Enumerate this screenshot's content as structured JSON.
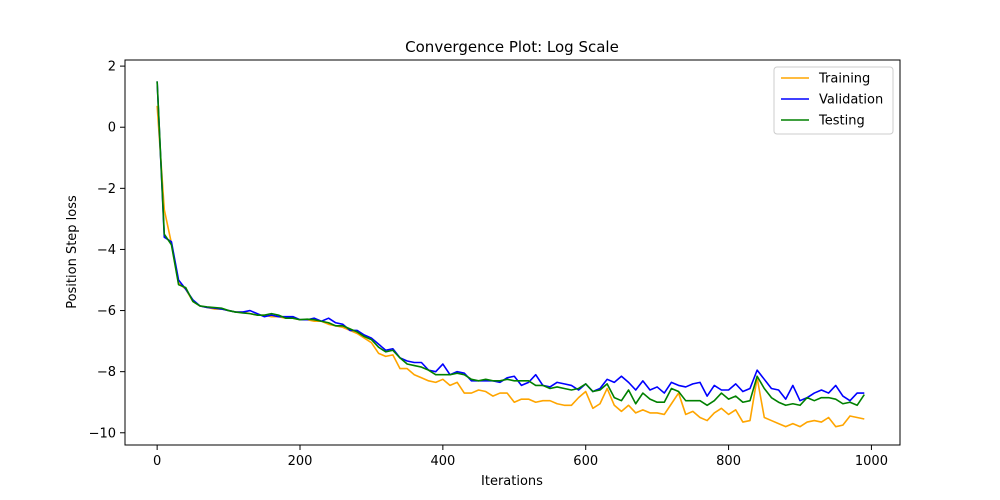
{
  "chart_data": {
    "type": "line",
    "title": "Convergence Plot: Log Scale",
    "xlabel": "Iterations",
    "ylabel": "Position Step loss",
    "xlim": [
      -45,
      1040
    ],
    "ylim": [
      -10.4,
      2.2
    ],
    "xticks": [
      0,
      200,
      400,
      600,
      800,
      1000
    ],
    "yticks": [
      2,
      0,
      -2,
      -4,
      -6,
      -8,
      -10
    ],
    "xtick_labels": [
      "0",
      "200",
      "400",
      "600",
      "800",
      "1000"
    ],
    "ytick_labels": [
      "2",
      "0",
      "−2",
      "−4",
      "−6",
      "−8",
      "−10"
    ],
    "grid": false,
    "legend_position": "top-right",
    "x": [
      0,
      10,
      20,
      30,
      40,
      50,
      60,
      70,
      80,
      90,
      100,
      110,
      120,
      130,
      140,
      150,
      160,
      170,
      180,
      190,
      200,
      210,
      220,
      230,
      240,
      250,
      260,
      270,
      280,
      290,
      300,
      310,
      320,
      330,
      340,
      350,
      360,
      370,
      380,
      390,
      400,
      410,
      420,
      430,
      440,
      450,
      460,
      470,
      480,
      490,
      500,
      510,
      520,
      530,
      540,
      550,
      560,
      570,
      580,
      590,
      600,
      610,
      620,
      630,
      640,
      650,
      660,
      670,
      680,
      690,
      700,
      710,
      720,
      730,
      740,
      750,
      760,
      770,
      780,
      790,
      800,
      810,
      820,
      830,
      840,
      850,
      860,
      870,
      880,
      890,
      900,
      910,
      920,
      930,
      940,
      950,
      960,
      970,
      980,
      990
    ],
    "series": [
      {
        "name": "Training",
        "color": "#ffa500",
        "values": [
          0.7,
          -2.7,
          -3.8,
          -5.1,
          -5.3,
          -5.7,
          -5.85,
          -5.9,
          -5.95,
          -5.95,
          -6.0,
          -6.05,
          -6.05,
          -6.1,
          -6.15,
          -6.15,
          -6.2,
          -6.2,
          -6.25,
          -6.25,
          -6.3,
          -6.3,
          -6.35,
          -6.35,
          -6.45,
          -6.5,
          -6.55,
          -6.65,
          -6.75,
          -6.9,
          -7.05,
          -7.4,
          -7.5,
          -7.45,
          -7.9,
          -7.9,
          -8.1,
          -8.2,
          -8.3,
          -8.35,
          -8.25,
          -8.45,
          -8.35,
          -8.7,
          -8.7,
          -8.6,
          -8.65,
          -8.8,
          -8.7,
          -8.7,
          -9.0,
          -8.9,
          -8.9,
          -9.0,
          -8.95,
          -8.95,
          -9.05,
          -9.1,
          -9.1,
          -8.85,
          -8.65,
          -9.2,
          -9.05,
          -8.55,
          -9.1,
          -9.3,
          -9.1,
          -9.35,
          -9.25,
          -9.35,
          -9.35,
          -9.4,
          -9.05,
          -8.7,
          -9.4,
          -9.3,
          -9.5,
          -9.6,
          -9.35,
          -9.2,
          -9.4,
          -9.25,
          -9.65,
          -9.6,
          -8.2,
          -9.5,
          -9.6,
          -9.7,
          -9.8,
          -9.7,
          -9.8,
          -9.65,
          -9.6,
          -9.65,
          -9.5,
          -9.8,
          -9.75,
          -9.45,
          -9.5,
          -9.55
        ]
      },
      {
        "name": "Validation",
        "color": "#0000ff",
        "values": [
          1.5,
          -3.6,
          -3.75,
          -5.0,
          -5.3,
          -5.65,
          -5.85,
          -5.9,
          -5.92,
          -5.95,
          -6.0,
          -6.05,
          -6.05,
          -6.0,
          -6.1,
          -6.2,
          -6.15,
          -6.2,
          -6.2,
          -6.2,
          -6.3,
          -6.3,
          -6.25,
          -6.35,
          -6.25,
          -6.4,
          -6.45,
          -6.65,
          -6.65,
          -6.8,
          -6.9,
          -7.1,
          -7.3,
          -7.25,
          -7.55,
          -7.65,
          -7.7,
          -7.7,
          -7.95,
          -8.0,
          -7.75,
          -8.1,
          -8.0,
          -8.05,
          -8.3,
          -8.3,
          -8.3,
          -8.3,
          -8.35,
          -8.2,
          -8.15,
          -8.45,
          -8.35,
          -8.1,
          -8.45,
          -8.5,
          -8.35,
          -8.4,
          -8.45,
          -8.6,
          -8.4,
          -8.65,
          -8.55,
          -8.25,
          -8.35,
          -8.15,
          -8.35,
          -8.6,
          -8.3,
          -8.6,
          -8.5,
          -8.7,
          -8.35,
          -8.45,
          -8.5,
          -8.4,
          -8.35,
          -8.8,
          -8.45,
          -8.6,
          -8.6,
          -8.4,
          -8.65,
          -8.55,
          -7.95,
          -8.25,
          -8.55,
          -8.6,
          -8.9,
          -8.45,
          -8.95,
          -8.85,
          -8.7,
          -8.6,
          -8.7,
          -8.45,
          -8.8,
          -8.95,
          -8.7,
          -8.7
        ]
      },
      {
        "name": "Testing",
        "color": "#008000",
        "values": [
          1.5,
          -3.5,
          -3.85,
          -5.15,
          -5.25,
          -5.7,
          -5.85,
          -5.88,
          -5.9,
          -5.92,
          -6.0,
          -6.05,
          -6.08,
          -6.1,
          -6.15,
          -6.15,
          -6.1,
          -6.15,
          -6.25,
          -6.25,
          -6.3,
          -6.28,
          -6.3,
          -6.35,
          -6.4,
          -6.5,
          -6.5,
          -6.6,
          -6.7,
          -6.85,
          -6.95,
          -7.2,
          -7.35,
          -7.3,
          -7.55,
          -7.75,
          -7.8,
          -7.85,
          -7.95,
          -8.1,
          -8.1,
          -8.1,
          -8.05,
          -8.1,
          -8.25,
          -8.3,
          -8.25,
          -8.3,
          -8.3,
          -8.25,
          -8.3,
          -8.3,
          -8.3,
          -8.45,
          -8.45,
          -8.55,
          -8.5,
          -8.55,
          -8.6,
          -8.55,
          -8.4,
          -8.65,
          -8.6,
          -8.4,
          -8.85,
          -8.95,
          -8.6,
          -9.05,
          -8.7,
          -8.9,
          -9.0,
          -9.0,
          -8.55,
          -8.65,
          -8.95,
          -8.95,
          -8.95,
          -9.1,
          -8.95,
          -8.7,
          -8.9,
          -8.8,
          -9.0,
          -8.95,
          -8.15,
          -8.55,
          -8.85,
          -9.0,
          -9.1,
          -9.05,
          -9.1,
          -8.85,
          -8.95,
          -8.85,
          -8.85,
          -8.9,
          -9.05,
          -9.0,
          -9.1,
          -8.75
        ]
      }
    ]
  }
}
